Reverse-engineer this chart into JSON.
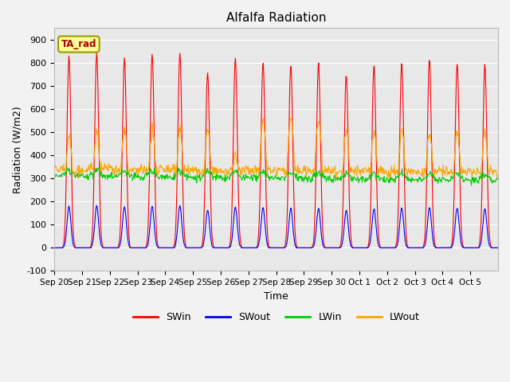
{
  "title": "Alfalfa Radiation",
  "xlabel": "Time",
  "ylabel": "Radiation (W/m2)",
  "ylim": [
    -100,
    950
  ],
  "yticks": [
    -100,
    0,
    100,
    200,
    300,
    400,
    500,
    600,
    700,
    800,
    900
  ],
  "xtick_labels": [
    "Sep 20",
    "Sep 21",
    "Sep 22",
    "Sep 23",
    "Sep 24",
    "Sep 25",
    "Sep 26",
    "Sep 27",
    "Sep 28",
    "Sep 29",
    "Sep 30",
    "Oct 1",
    "Oct 2",
    "Oct 3",
    "Oct 4",
    "Oct 5"
  ],
  "colors": {
    "SWin": "#ff0000",
    "SWout": "#0000ff",
    "LWin": "#00cc00",
    "LWout": "#ffa500"
  },
  "plot_bg_color": "#e8e8e8",
  "fig_bg_color": "#f2f2f2",
  "grid_color": "#ffffff",
  "annotation_label": "TA_rad",
  "annotation_box_color": "#ffff99",
  "annotation_text_color": "#aa0000",
  "annotation_edge_color": "#999900"
}
